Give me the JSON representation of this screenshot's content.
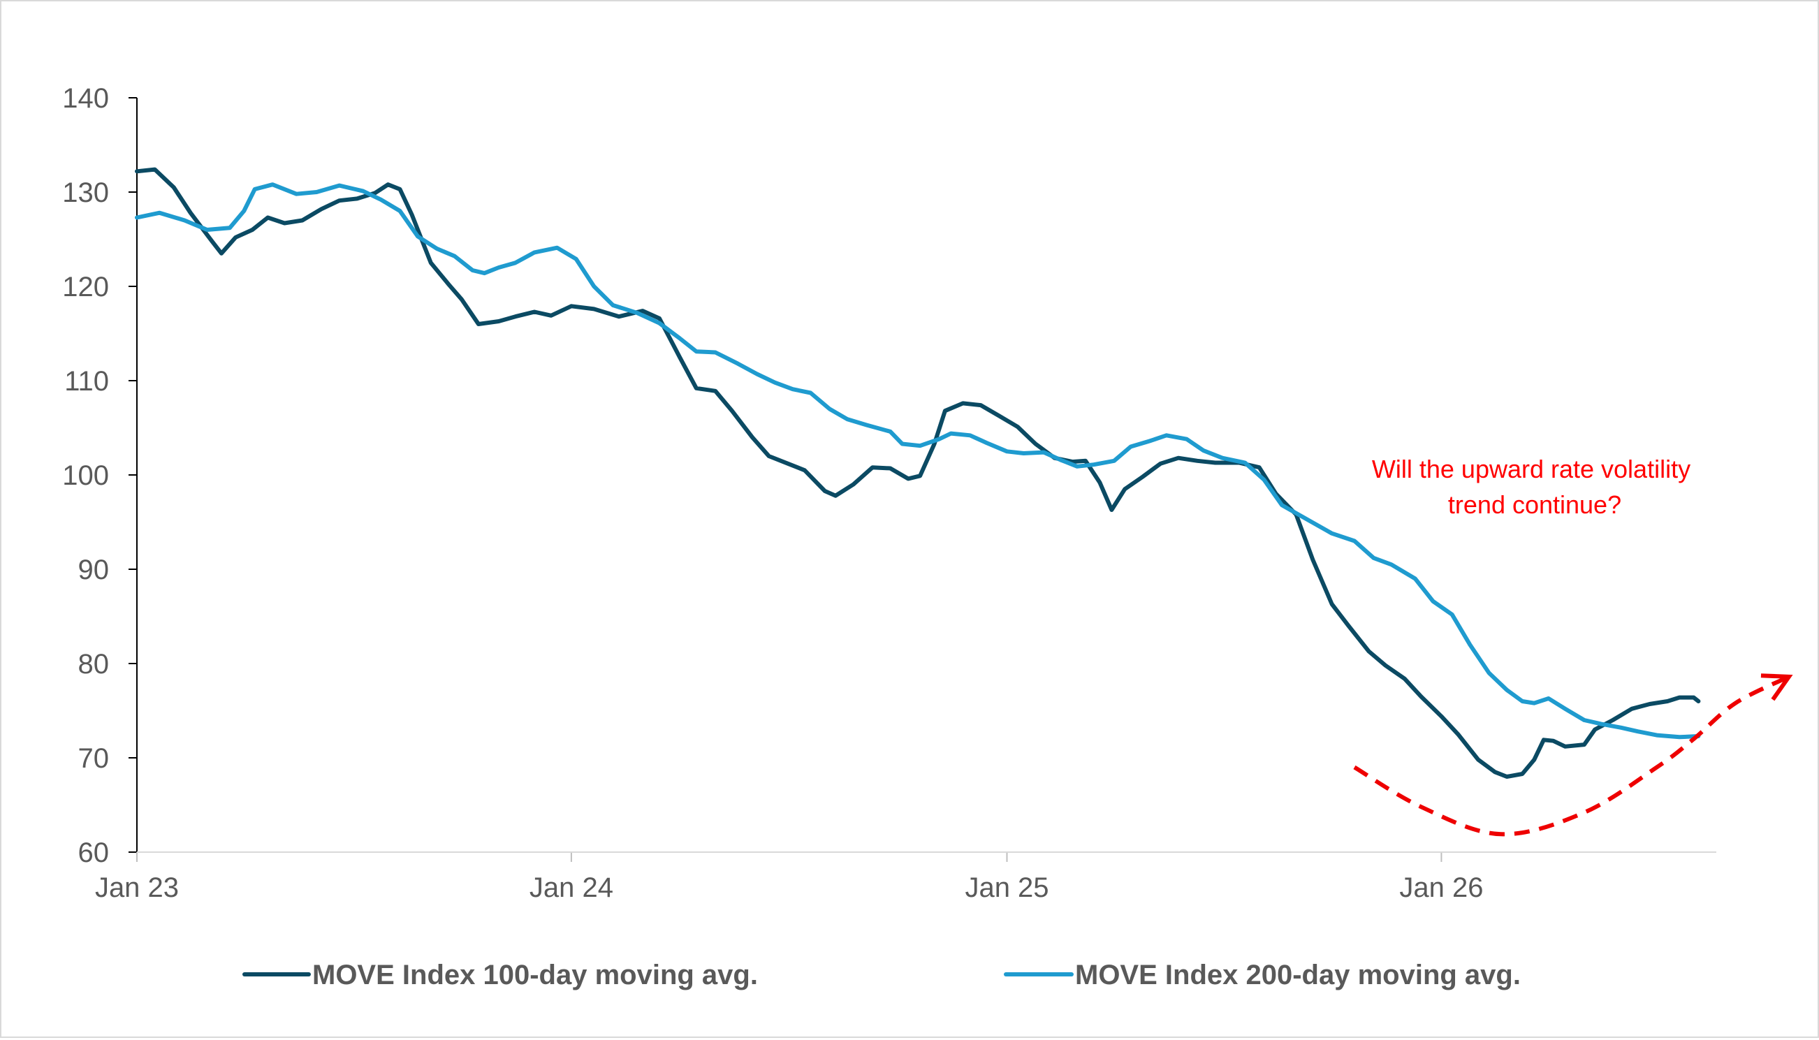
{
  "chart_data": {
    "type": "line",
    "title": "",
    "xlabel": "",
    "ylabel": "",
    "ylim": [
      60,
      140
    ],
    "yticks": [
      "60",
      "70",
      "80",
      "90",
      "100",
      "110",
      "120",
      "130",
      "140"
    ],
    "xlim": [
      "2023-01-01",
      "2026-08-20"
    ],
    "xticks": [
      {
        "label": "Jan 23",
        "date": "2023-01-01"
      },
      {
        "label": "Jan 24",
        "date": "2024-01-01"
      },
      {
        "label": "Jan 25",
        "date": "2025-01-01"
      },
      {
        "label": "Jan 26",
        "date": "2026-01-01"
      }
    ],
    "grid": false,
    "legend_position": "bottom",
    "series": [
      {
        "name": "MOVE Index 100-day moving avg.",
        "color": "#0b4a63",
        "points": [
          [
            "2023-01-01",
            132.2
          ],
          [
            "2023-01-16",
            132.4
          ],
          [
            "2023-02-01",
            130.5
          ],
          [
            "2023-02-15",
            127.8
          ],
          [
            "2023-03-05",
            124.8
          ],
          [
            "2023-03-13",
            123.5
          ],
          [
            "2023-03-25",
            125.2
          ],
          [
            "2023-04-08",
            126.0
          ],
          [
            "2023-04-21",
            127.3
          ],
          [
            "2023-05-05",
            126.7
          ],
          [
            "2023-05-20",
            127.0
          ],
          [
            "2023-06-05",
            128.2
          ],
          [
            "2023-06-20",
            129.1
          ],
          [
            "2023-07-05",
            129.3
          ],
          [
            "2023-07-20",
            129.9
          ],
          [
            "2023-07-31",
            130.8
          ],
          [
            "2023-08-10",
            130.3
          ],
          [
            "2023-08-20",
            127.6
          ],
          [
            "2023-09-05",
            122.5
          ],
          [
            "2023-09-20",
            120.2
          ],
          [
            "2023-10-01",
            118.6
          ],
          [
            "2023-10-15",
            116.0
          ],
          [
            "2023-11-01",
            116.3
          ],
          [
            "2023-11-15",
            116.8
          ],
          [
            "2023-12-01",
            117.3
          ],
          [
            "2023-12-15",
            116.9
          ],
          [
            "2024-01-01",
            117.9
          ],
          [
            "2024-01-20",
            117.6
          ],
          [
            "2024-02-10",
            116.8
          ],
          [
            "2024-03-01",
            117.4
          ],
          [
            "2024-03-15",
            116.6
          ],
          [
            "2024-04-01",
            112.5
          ],
          [
            "2024-04-15",
            109.2
          ],
          [
            "2024-05-01",
            108.9
          ],
          [
            "2024-05-15",
            106.8
          ],
          [
            "2024-06-01",
            104.0
          ],
          [
            "2024-06-15",
            102.0
          ],
          [
            "2024-07-01",
            101.2
          ],
          [
            "2024-07-15",
            100.5
          ],
          [
            "2024-08-01",
            98.3
          ],
          [
            "2024-08-10",
            97.8
          ],
          [
            "2024-08-25",
            99.0
          ],
          [
            "2024-09-10",
            100.8
          ],
          [
            "2024-09-25",
            100.7
          ],
          [
            "2024-10-10",
            99.6
          ],
          [
            "2024-10-20",
            99.9
          ],
          [
            "2024-11-01",
            103.3
          ],
          [
            "2024-11-10",
            106.8
          ],
          [
            "2024-11-25",
            107.6
          ],
          [
            "2024-12-10",
            107.4
          ],
          [
            "2024-12-25",
            106.3
          ],
          [
            "2025-01-10",
            105.1
          ],
          [
            "2025-01-25",
            103.3
          ],
          [
            "2025-02-10",
            101.8
          ],
          [
            "2025-02-25",
            101.4
          ],
          [
            "2025-03-08",
            101.5
          ],
          [
            "2025-03-20",
            99.2
          ],
          [
            "2025-03-30",
            96.3
          ],
          [
            "2025-04-10",
            98.5
          ],
          [
            "2025-04-25",
            99.8
          ],
          [
            "2025-05-10",
            101.2
          ],
          [
            "2025-05-25",
            101.8
          ],
          [
            "2025-06-10",
            101.5
          ],
          [
            "2025-06-25",
            101.3
          ],
          [
            "2025-07-15",
            101.3
          ],
          [
            "2025-08-01",
            100.8
          ],
          [
            "2025-08-15",
            98.0
          ],
          [
            "2025-09-01",
            95.8
          ],
          [
            "2025-09-15",
            91.0
          ],
          [
            "2025-10-01",
            86.3
          ],
          [
            "2025-10-15",
            84.0
          ],
          [
            "2025-11-01",
            81.3
          ],
          [
            "2025-11-15",
            79.8
          ],
          [
            "2025-12-01",
            78.4
          ],
          [
            "2025-12-15",
            76.5
          ],
          [
            "2026-01-01",
            74.4
          ],
          [
            "2026-01-15",
            72.5
          ],
          [
            "2026-02-01",
            69.8
          ],
          [
            "2026-02-15",
            68.5
          ],
          [
            "2026-02-25",
            68.0
          ],
          [
            "2026-03-10",
            68.3
          ],
          [
            "2026-03-20",
            69.8
          ],
          [
            "2026-03-28",
            71.9
          ],
          [
            "2026-04-05",
            71.8
          ],
          [
            "2026-04-15",
            71.2
          ],
          [
            "2026-05-01",
            71.4
          ],
          [
            "2026-05-10",
            73.0
          ],
          [
            "2026-05-25",
            74.0
          ],
          [
            "2026-06-10",
            75.2
          ],
          [
            "2026-06-25",
            75.7
          ],
          [
            "2026-07-10",
            76.0
          ],
          [
            "2026-07-20",
            76.4
          ],
          [
            "2026-08-01",
            76.4
          ],
          [
            "2026-08-05",
            76.0
          ]
        ]
      },
      {
        "name": "MOVE Index 200-day moving avg.",
        "color": "#1f9bcf",
        "points": [
          [
            "2023-01-01",
            127.3
          ],
          [
            "2023-01-20",
            127.8
          ],
          [
            "2023-02-10",
            127.0
          ],
          [
            "2023-03-01",
            126.0
          ],
          [
            "2023-03-20",
            126.2
          ],
          [
            "2023-04-01",
            128.0
          ],
          [
            "2023-04-10",
            130.3
          ],
          [
            "2023-04-25",
            130.8
          ],
          [
            "2023-05-15",
            129.8
          ],
          [
            "2023-06-01",
            130.0
          ],
          [
            "2023-06-20",
            130.7
          ],
          [
            "2023-07-10",
            130.1
          ],
          [
            "2023-07-25",
            129.2
          ],
          [
            "2023-08-10",
            128.0
          ],
          [
            "2023-08-25",
            125.3
          ],
          [
            "2023-09-10",
            124.0
          ],
          [
            "2023-09-25",
            123.2
          ],
          [
            "2023-10-10",
            121.7
          ],
          [
            "2023-10-20",
            121.4
          ],
          [
            "2023-11-01",
            122.0
          ],
          [
            "2023-11-15",
            122.5
          ],
          [
            "2023-12-01",
            123.6
          ],
          [
            "2023-12-20",
            124.1
          ],
          [
            "2024-01-05",
            122.9
          ],
          [
            "2024-01-20",
            120.0
          ],
          [
            "2024-02-05",
            118.0
          ],
          [
            "2024-02-25",
            117.2
          ],
          [
            "2024-03-15",
            116.1
          ],
          [
            "2024-04-01",
            114.5
          ],
          [
            "2024-04-15",
            113.1
          ],
          [
            "2024-05-01",
            113.0
          ],
          [
            "2024-05-20",
            111.8
          ],
          [
            "2024-06-05",
            110.7
          ],
          [
            "2024-06-20",
            109.8
          ],
          [
            "2024-07-05",
            109.1
          ],
          [
            "2024-07-20",
            108.7
          ],
          [
            "2024-08-05",
            107.0
          ],
          [
            "2024-08-20",
            105.9
          ],
          [
            "2024-09-05",
            105.3
          ],
          [
            "2024-09-25",
            104.6
          ],
          [
            "2024-10-05",
            103.3
          ],
          [
            "2024-10-20",
            103.1
          ],
          [
            "2024-11-05",
            103.8
          ],
          [
            "2024-11-15",
            104.4
          ],
          [
            "2024-12-01",
            104.2
          ],
          [
            "2024-12-15",
            103.4
          ],
          [
            "2025-01-01",
            102.5
          ],
          [
            "2025-01-15",
            102.3
          ],
          [
            "2025-02-01",
            102.4
          ],
          [
            "2025-02-15",
            101.6
          ],
          [
            "2025-03-01",
            100.9
          ],
          [
            "2025-03-15",
            101.1
          ],
          [
            "2025-04-01",
            101.5
          ],
          [
            "2025-04-15",
            103.0
          ],
          [
            "2025-05-01",
            103.6
          ],
          [
            "2025-05-15",
            104.2
          ],
          [
            "2025-06-01",
            103.8
          ],
          [
            "2025-06-15",
            102.6
          ],
          [
            "2025-07-01",
            101.8
          ],
          [
            "2025-07-20",
            101.3
          ],
          [
            "2025-08-05",
            99.5
          ],
          [
            "2025-08-20",
            96.8
          ],
          [
            "2025-09-10",
            95.3
          ],
          [
            "2025-10-01",
            93.8
          ],
          [
            "2025-10-20",
            93.0
          ],
          [
            "2025-11-05",
            91.2
          ],
          [
            "2025-11-20",
            90.5
          ],
          [
            "2025-12-10",
            89.0
          ],
          [
            "2025-12-25",
            86.6
          ],
          [
            "2026-01-10",
            85.2
          ],
          [
            "2026-01-25",
            82.0
          ],
          [
            "2026-02-10",
            79.0
          ],
          [
            "2026-02-25",
            77.2
          ],
          [
            "2026-03-10",
            76.0
          ],
          [
            "2026-03-20",
            75.8
          ],
          [
            "2026-04-01",
            76.3
          ],
          [
            "2026-04-15",
            75.2
          ],
          [
            "2026-05-01",
            74.0
          ],
          [
            "2026-05-15",
            73.6
          ],
          [
            "2026-06-01",
            73.2
          ],
          [
            "2026-06-15",
            72.8
          ],
          [
            "2026-07-01",
            72.4
          ],
          [
            "2026-07-20",
            72.2
          ],
          [
            "2026-08-05",
            72.3
          ]
        ]
      }
    ],
    "annotation": {
      "text_lines": [
        "Will the upward rate volatility",
        "trend continue?"
      ],
      "color": "#ff0000"
    },
    "dashed_arrow": {
      "color": "#ee0000",
      "points": [
        [
          "2025-10-20",
          69.0
        ],
        [
          "2025-12-15",
          64.8
        ],
        [
          "2026-02-20",
          61.9
        ],
        [
          "2026-05-01",
          64.2
        ],
        [
          "2026-07-01",
          69.0
        ],
        [
          "2026-08-01",
          72.0
        ],
        [
          "2026-09-05",
          75.8
        ],
        [
          "2026-10-20",
          78.6
        ]
      ]
    }
  }
}
